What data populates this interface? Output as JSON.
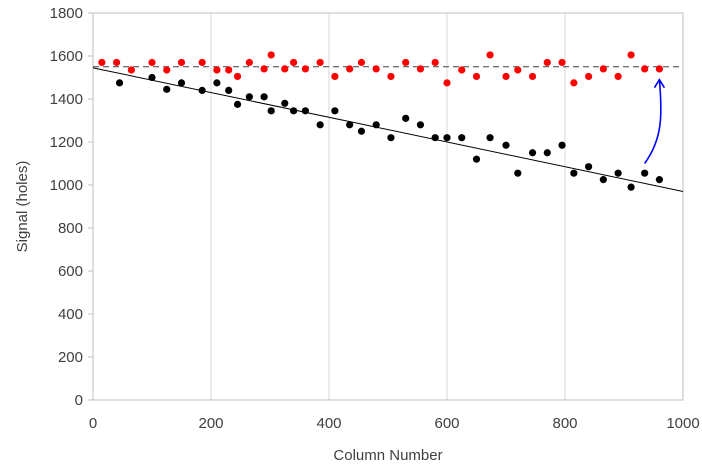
{
  "chart_data": {
    "type": "scatter",
    "title": "",
    "xlabel": "Column Number",
    "ylabel": "Signal (holes)",
    "xlim": [
      0,
      1000
    ],
    "ylim": [
      0,
      1800
    ],
    "x_ticks": [
      "0",
      "200",
      "400",
      "600",
      "800",
      "1000"
    ],
    "y_ticks": [
      "0",
      "200",
      "400",
      "600",
      "800",
      "1000",
      "1200",
      "1400",
      "1600",
      "1800"
    ],
    "grid": "vertical",
    "legend": "none",
    "series": [
      {
        "color": "#ff0000",
        "marker": "circle",
        "points": [
          [
            15,
            1570
          ],
          [
            40,
            1570
          ],
          [
            65,
            1535
          ],
          [
            100,
            1570
          ],
          [
            125,
            1535
          ],
          [
            150,
            1570
          ],
          [
            185,
            1570
          ],
          [
            210,
            1535
          ],
          [
            230,
            1535
          ],
          [
            245,
            1505
          ],
          [
            265,
            1570
          ],
          [
            290,
            1540
          ],
          [
            302,
            1605
          ],
          [
            325,
            1540
          ],
          [
            340,
            1570
          ],
          [
            360,
            1540
          ],
          [
            385,
            1570
          ],
          [
            410,
            1505
          ],
          [
            435,
            1540
          ],
          [
            455,
            1570
          ],
          [
            480,
            1540
          ],
          [
            505,
            1505
          ],
          [
            530,
            1570
          ],
          [
            555,
            1540
          ],
          [
            580,
            1570
          ],
          [
            600,
            1475
          ],
          [
            625,
            1535
          ],
          [
            650,
            1505
          ],
          [
            673,
            1605
          ],
          [
            700,
            1505
          ],
          [
            720,
            1535
          ],
          [
            745,
            1505
          ],
          [
            770,
            1570
          ],
          [
            795,
            1570
          ],
          [
            815,
            1475
          ],
          [
            840,
            1505
          ],
          [
            865,
            1540
          ],
          [
            890,
            1505
          ],
          [
            912,
            1605
          ],
          [
            935,
            1540
          ],
          [
            960,
            1540
          ]
        ]
      },
      {
        "color": "#000000",
        "marker": "circle",
        "points": [
          [
            45,
            1475
          ],
          [
            100,
            1500
          ],
          [
            125,
            1445
          ],
          [
            150,
            1475
          ],
          [
            185,
            1440
          ],
          [
            210,
            1475
          ],
          [
            230,
            1440
          ],
          [
            245,
            1375
          ],
          [
            265,
            1410
          ],
          [
            290,
            1410
          ],
          [
            302,
            1345
          ],
          [
            325,
            1380
          ],
          [
            340,
            1345
          ],
          [
            360,
            1345
          ],
          [
            385,
            1280
          ],
          [
            410,
            1345
          ],
          [
            435,
            1280
          ],
          [
            455,
            1250
          ],
          [
            480,
            1280
          ],
          [
            505,
            1220
          ],
          [
            530,
            1310
          ],
          [
            555,
            1280
          ],
          [
            580,
            1220
          ],
          [
            600,
            1220
          ],
          [
            625,
            1220
          ],
          [
            650,
            1120
          ],
          [
            673,
            1220
          ],
          [
            700,
            1185
          ],
          [
            720,
            1055
          ],
          [
            745,
            1150
          ],
          [
            770,
            1150
          ],
          [
            795,
            1185
          ],
          [
            815,
            1055
          ],
          [
            840,
            1085
          ],
          [
            865,
            1025
          ],
          [
            890,
            1055
          ],
          [
            912,
            990
          ],
          [
            935,
            1055
          ],
          [
            960,
            1025
          ]
        ]
      }
    ],
    "reference_lines": [
      {
        "style": "solid",
        "color": "#000000",
        "from": [
          0,
          1545
        ],
        "to": [
          1000,
          970
        ]
      },
      {
        "style": "dashed",
        "color": "#404040",
        "from": [
          0,
          1550
        ],
        "to": [
          1000,
          1550
        ]
      }
    ],
    "annotation": {
      "type": "curved-arrow",
      "color": "#0000ff",
      "from": [
        935,
        1100
      ],
      "to": [
        960,
        1490
      ]
    }
  }
}
